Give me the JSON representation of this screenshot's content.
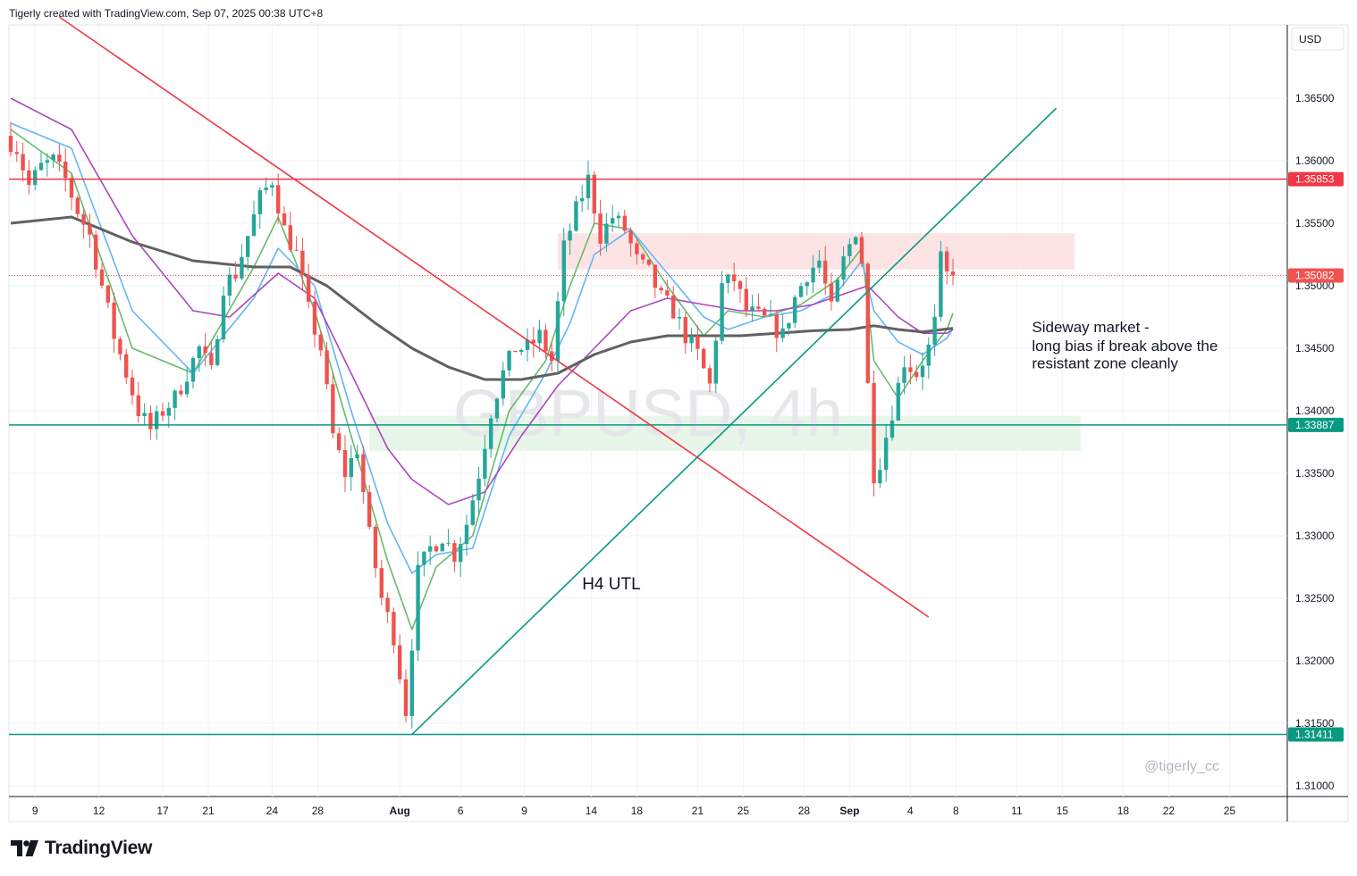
{
  "header": {
    "text": "Tigerly created with TradingView.com, Sep 07, 2025 00:38 UTC+8"
  },
  "footer": {
    "logo_text": "TradingView",
    "logo_icon": "tradingview-logo-icon"
  },
  "watermark": {
    "symbol": "GBPUSD, 4h",
    "author": "@tigerly_cc"
  },
  "currency_label": "USD",
  "colors": {
    "up": "#26a69a",
    "down": "#ef5350",
    "red_line": "#f23645",
    "teal_line": "#089981",
    "ma_fast": "#66bb6a",
    "ma_mid": "#64b5f6",
    "ma_slow": "#ab47bc",
    "ma_long": "#616161",
    "resistance_zone": "#fde4e4",
    "support_zone": "#e8f5e9",
    "grid": "#f0f3fa"
  },
  "chart_data": {
    "type": "candlestick",
    "title": "GBPUSD, 4h",
    "y_ticks": [
      "1.36500",
      "1.36000",
      "1.35500",
      "1.35000",
      "1.34500",
      "1.34000",
      "1.33500",
      "1.33000",
      "1.32500",
      "1.32000",
      "1.31500",
      "1.31000"
    ],
    "ylim": [
      1.3085,
      1.3688
    ],
    "x_ticks": [
      "9",
      "12",
      "17",
      "21",
      "24",
      "28",
      "Aug",
      "6",
      "9",
      "14",
      "18",
      "21",
      "25",
      "28",
      "Sep",
      "4",
      "8",
      "11",
      "15",
      "18",
      "22",
      "25"
    ],
    "price_badges": [
      {
        "value": 1.35853,
        "label": "1.35853",
        "color": "#f23645"
      },
      {
        "value": 1.35082,
        "label": "1.35082",
        "color": "#ef5350"
      },
      {
        "value": 1.33887,
        "label": "1.33887",
        "color": "#089981"
      },
      {
        "value": 1.31411,
        "label": "1.31411",
        "color": "#089981"
      }
    ],
    "horizontal_lines": [
      {
        "value": 1.35853,
        "color": "#f23645"
      },
      {
        "value": 1.33887,
        "color": "#089981"
      },
      {
        "value": 1.31411,
        "color": "#089981"
      }
    ],
    "trend_lines": [
      {
        "name": "downtrend",
        "color": "#f23645",
        "from": {
          "bar": 8,
          "price": 1.3715
        },
        "to": {
          "bar": 151,
          "price": 1.3235
        }
      },
      {
        "name": "H4 UTL",
        "color": "#089981",
        "from": {
          "bar": 66,
          "price": 1.3141
        },
        "to": {
          "bar": 172,
          "price": 1.3642
        }
      }
    ],
    "zones": [
      {
        "name": "resistant zone",
        "color": "#fde4e4",
        "from_bar": 90,
        "to_bar": 175,
        "top": 1.3542,
        "bottom": 1.3513
      },
      {
        "name": "support zone",
        "color": "#e8f5e9",
        "from_bar": 59,
        "to_bar": 176,
        "top": 1.3396,
        "bottom": 1.3368
      }
    ],
    "annotations": [
      {
        "text": "H4 UTL",
        "bar": 94,
        "price": 1.3257,
        "size": 19
      },
      {
        "text": "Sideway market -",
        "bar": 168,
        "price": 1.3463,
        "size": 17
      },
      {
        "text": "long bias if break above the",
        "bar": 168,
        "price": 1.3448,
        "size": 17
      },
      {
        "text": "resistant zone cleanly",
        "bar": 168,
        "price": 1.3434,
        "size": 17
      }
    ],
    "last_price": 1.35082,
    "price_path": [
      [
        0,
        1.362
      ],
      [
        2,
        1.361
      ],
      [
        4,
        1.358
      ],
      [
        6,
        1.3595
      ],
      [
        8,
        1.36
      ],
      [
        10,
        1.3585
      ],
      [
        12,
        1.356
      ],
      [
        14,
        1.354
      ],
      [
        16,
        1.35
      ],
      [
        18,
        1.346
      ],
      [
        20,
        1.343
      ],
      [
        22,
        1.34
      ],
      [
        24,
        1.3385
      ],
      [
        26,
        1.34
      ],
      [
        28,
        1.341
      ],
      [
        30,
        1.343
      ],
      [
        32,
        1.345
      ],
      [
        34,
        1.343
      ],
      [
        36,
        1.35
      ],
      [
        38,
        1.351
      ],
      [
        40,
        1.354
      ],
      [
        42,
        1.357
      ],
      [
        44,
        1.3585
      ],
      [
        46,
        1.3545
      ],
      [
        48,
        1.3525
      ],
      [
        50,
        1.348
      ],
      [
        52,
        1.345
      ],
      [
        54,
        1.338
      ],
      [
        56,
        1.335
      ],
      [
        58,
        1.337
      ],
      [
        60,
        1.33
      ],
      [
        62,
        1.325
      ],
      [
        64,
        1.322
      ],
      [
        66,
        1.316
      ],
      [
        68,
        1.327
      ],
      [
        70,
        1.329
      ],
      [
        72,
        1.33
      ],
      [
        74,
        1.3285
      ],
      [
        76,
        1.331
      ],
      [
        78,
        1.335
      ],
      [
        80,
        1.34
      ],
      [
        82,
        1.343
      ],
      [
        84,
        1.345
      ],
      [
        86,
        1.345
      ],
      [
        88,
        1.346
      ],
      [
        90,
        1.344
      ],
      [
        92,
        1.353
      ],
      [
        94,
        1.356
      ],
      [
        96,
        1.3585
      ],
      [
        98,
        1.354
      ],
      [
        100,
        1.3555
      ],
      [
        102,
        1.3545
      ],
      [
        104,
        1.352
      ],
      [
        106,
        1.351
      ],
      [
        108,
        1.349
      ],
      [
        110,
        1.348
      ],
      [
        112,
        1.346
      ],
      [
        114,
        1.3445
      ],
      [
        116,
        1.342
      ],
      [
        118,
        1.35
      ],
      [
        120,
        1.3505
      ],
      [
        122,
        1.348
      ],
      [
        124,
        1.3475
      ],
      [
        126,
        1.347
      ],
      [
        128,
        1.346
      ],
      [
        130,
        1.349
      ],
      [
        132,
        1.351
      ],
      [
        134,
        1.352
      ],
      [
        136,
        1.348
      ],
      [
        138,
        1.352
      ],
      [
        140,
        1.3545
      ],
      [
        141,
        1.352
      ],
      [
        142,
        1.342
      ],
      [
        143,
        1.335
      ],
      [
        144,
        1.336
      ],
      [
        146,
        1.34
      ],
      [
        148,
        1.344
      ],
      [
        150,
        1.343
      ],
      [
        152,
        1.345
      ],
      [
        153,
        1.347
      ],
      [
        154,
        1.352
      ],
      [
        155,
        1.3508
      ]
    ],
    "moving_averages": [
      {
        "name": "MA fast",
        "color": "#66bb6a",
        "points": [
          [
            0,
            1.3625
          ],
          [
            10,
            1.359
          ],
          [
            20,
            1.345
          ],
          [
            30,
            1.343
          ],
          [
            40,
            1.3515
          ],
          [
            44,
            1.3555
          ],
          [
            50,
            1.348
          ],
          [
            56,
            1.338
          ],
          [
            62,
            1.328
          ],
          [
            66,
            1.3225
          ],
          [
            70,
            1.3275
          ],
          [
            76,
            1.33
          ],
          [
            82,
            1.34
          ],
          [
            88,
            1.344
          ],
          [
            92,
            1.35
          ],
          [
            96,
            1.355
          ],
          [
            102,
            1.3545
          ],
          [
            108,
            1.35
          ],
          [
            114,
            1.346
          ],
          [
            118,
            1.348
          ],
          [
            124,
            1.3475
          ],
          [
            130,
            1.3485
          ],
          [
            136,
            1.3505
          ],
          [
            140,
            1.353
          ],
          [
            142,
            1.344
          ],
          [
            146,
            1.341
          ],
          [
            150,
            1.344
          ],
          [
            154,
            1.3465
          ],
          [
            155,
            1.3478
          ]
        ]
      },
      {
        "name": "MA mid",
        "color": "#64b5f6",
        "points": [
          [
            0,
            1.363
          ],
          [
            10,
            1.361
          ],
          [
            20,
            1.348
          ],
          [
            30,
            1.343
          ],
          [
            40,
            1.349
          ],
          [
            44,
            1.353
          ],
          [
            50,
            1.35
          ],
          [
            56,
            1.34
          ],
          [
            62,
            1.331
          ],
          [
            66,
            1.327
          ],
          [
            70,
            1.3285
          ],
          [
            76,
            1.329
          ],
          [
            82,
            1.338
          ],
          [
            88,
            1.343
          ],
          [
            92,
            1.347
          ],
          [
            96,
            1.3525
          ],
          [
            102,
            1.3545
          ],
          [
            108,
            1.351
          ],
          [
            114,
            1.3475
          ],
          [
            118,
            1.3465
          ],
          [
            124,
            1.3475
          ],
          [
            130,
            1.348
          ],
          [
            136,
            1.3495
          ],
          [
            140,
            1.352
          ],
          [
            142,
            1.348
          ],
          [
            146,
            1.3455
          ],
          [
            150,
            1.3445
          ],
          [
            154,
            1.3458
          ],
          [
            155,
            1.3466
          ]
        ]
      },
      {
        "name": "MA slow",
        "color": "#ab47bc",
        "points": [
          [
            0,
            1.365
          ],
          [
            10,
            1.3625
          ],
          [
            20,
            1.354
          ],
          [
            30,
            1.348
          ],
          [
            36,
            1.3475
          ],
          [
            44,
            1.351
          ],
          [
            50,
            1.349
          ],
          [
            56,
            1.343
          ],
          [
            62,
            1.337
          ],
          [
            66,
            1.3345
          ],
          [
            72,
            1.3325
          ],
          [
            78,
            1.3335
          ],
          [
            84,
            1.338
          ],
          [
            90,
            1.342
          ],
          [
            96,
            1.345
          ],
          [
            102,
            1.348
          ],
          [
            108,
            1.349
          ],
          [
            114,
            1.3485
          ],
          [
            120,
            1.348
          ],
          [
            126,
            1.348
          ],
          [
            132,
            1.3485
          ],
          [
            138,
            1.3495
          ],
          [
            141,
            1.35
          ],
          [
            146,
            1.3475
          ],
          [
            150,
            1.3462
          ],
          [
            154,
            1.3462
          ],
          [
            155,
            1.3465
          ]
        ]
      },
      {
        "name": "MA long",
        "color": "#616161",
        "points": [
          [
            0,
            1.355
          ],
          [
            10,
            1.3555
          ],
          [
            20,
            1.3535
          ],
          [
            30,
            1.352
          ],
          [
            40,
            1.3515
          ],
          [
            46,
            1.3515
          ],
          [
            52,
            1.35
          ],
          [
            60,
            1.347
          ],
          [
            66,
            1.345
          ],
          [
            72,
            1.3435
          ],
          [
            78,
            1.3425
          ],
          [
            84,
            1.3425
          ],
          [
            90,
            1.343
          ],
          [
            96,
            1.3445
          ],
          [
            102,
            1.3455
          ],
          [
            108,
            1.346
          ],
          [
            114,
            1.346
          ],
          [
            120,
            1.346
          ],
          [
            126,
            1.3462
          ],
          [
            132,
            1.3464
          ],
          [
            138,
            1.3465
          ],
          [
            142,
            1.3468
          ],
          [
            146,
            1.3465
          ],
          [
            150,
            1.3463
          ],
          [
            155,
            1.3466
          ]
        ]
      }
    ]
  }
}
